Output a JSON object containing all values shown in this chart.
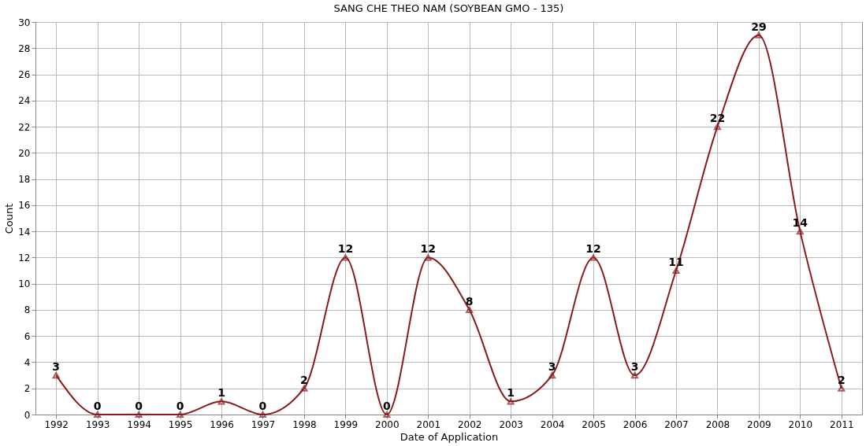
{
  "chart_data": {
    "type": "line",
    "title": "SANG CHE THEO NAM (SOYBEAN GMO - 135)",
    "xlabel": "Date of Application",
    "ylabel": "Count",
    "categories": [
      "1992",
      "1993",
      "1994",
      "1995",
      "1996",
      "1997",
      "1998",
      "1999",
      "2000",
      "2001",
      "2002",
      "2003",
      "2004",
      "2005",
      "2006",
      "2007",
      "2008",
      "2009",
      "2010",
      "2011"
    ],
    "series": [
      {
        "color": "#8b1a1a",
        "values": [
          3,
          0,
          0,
          0,
          1,
          0,
          2,
          12,
          0,
          12,
          8,
          1,
          3,
          12,
          3,
          11,
          22,
          29,
          14,
          2
        ]
      }
    ],
    "ylim": [
      0,
      30
    ],
    "yticks": [
      0,
      2,
      4,
      6,
      8,
      10,
      12,
      14,
      16,
      18,
      20,
      22,
      24,
      26,
      28,
      30
    ],
    "grid": true,
    "marker": "triangle",
    "line_style": "solid",
    "data_labels": true
  }
}
